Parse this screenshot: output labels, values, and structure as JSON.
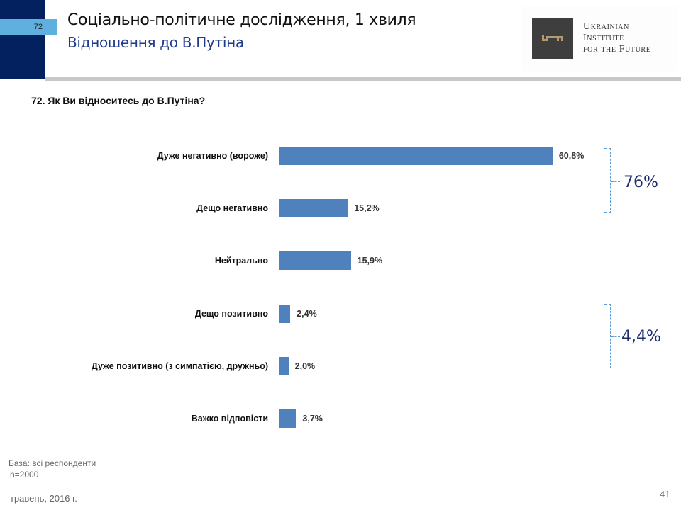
{
  "header": {
    "slide_number": "72",
    "title": "Соціально-політичне дослідження, 1 хвиля",
    "subtitle": "Відношення до В.Путіна",
    "logo": {
      "icon": "key-icon",
      "lines": [
        "Ukrainian",
        "Institute",
        "for the Future"
      ]
    }
  },
  "question": "72. Як Ви відноситесь до В.Путіна?",
  "colors": {
    "bar": "#4f81bd",
    "navy": "#03215f",
    "tab": "#5fb0de",
    "bracket": "#5b9bd5",
    "group_label": "#1f2f6e"
  },
  "chart_data": {
    "type": "bar",
    "orientation": "horizontal",
    "title": "72. Як Ви відноситесь до В.Путіна?",
    "xlabel": "",
    "ylabel": "",
    "unit": "%",
    "grid": false,
    "legend": null,
    "categories": [
      "Дуже негативно (вороже)",
      "Дещо негативно",
      "Нейтрально",
      "Дещо позитивно",
      "Дуже позитивно (з симпатією, дружньо)",
      "Важко відповісти"
    ],
    "values": [
      60.8,
      15.2,
      15.9,
      2.4,
      2.0,
      3.7
    ],
    "value_labels": [
      "60,8%",
      "15,2%",
      "15,9%",
      "2,4%",
      "2,0%",
      "3,7%"
    ],
    "annotations": [
      {
        "type": "bracket",
        "covers": [
          "Дуже негативно (вороже)",
          "Дещо негативно"
        ],
        "label": "76%"
      },
      {
        "type": "bracket",
        "covers": [
          "Дещо позитивно",
          "Дуже позитивно (з симпатією, дружньо)"
        ],
        "label": "4,4%"
      }
    ]
  },
  "groups": {
    "negative_total": "76%",
    "positive_total": "4,4%"
  },
  "footer": {
    "base": "База: всі респонденти",
    "n": "n=2000",
    "date": "травень, 2016 г.",
    "page": "41"
  }
}
